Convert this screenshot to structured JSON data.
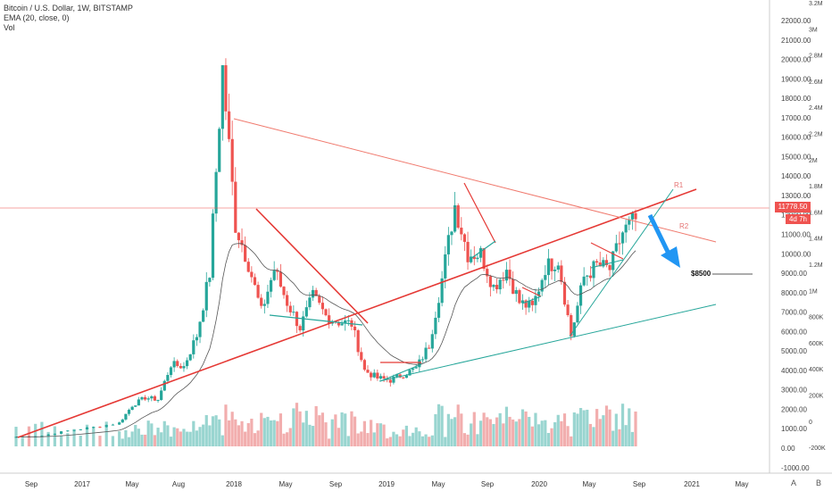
{
  "legend": {
    "symbol": "Bitcoin / U.S. Dollar, 1W, BITSTAMP",
    "ema": "EMA (20, close, 0)",
    "volume": "Vol"
  },
  "price_tag": "11778.50",
  "countdown": "4d 7h",
  "annotations": {
    "r1": "R1",
    "r2": "R2",
    "target": "$8500"
  },
  "buttons": {
    "auto": "A",
    "log": "B"
  },
  "colors": {
    "up": "#26a69a",
    "down": "#ef5350",
    "trend_red": "#e53935",
    "trend_teal": "#26a69a",
    "resistance": "#f07a6e",
    "ema": "#555555",
    "arrow": "#2196f3",
    "vol_up": "#80cbc4",
    "vol_down": "#ef9a9a"
  },
  "chart_data": {
    "type": "candlestick",
    "ylim": [
      0,
      22000
    ],
    "price_ticks": [
      "22000.00",
      "21000.00",
      "20000.00",
      "19000.00",
      "18000.00",
      "17000.00",
      "16000.00",
      "15000.00",
      "14000.00",
      "13000.00",
      "12000.00",
      "11000.00",
      "10000.00",
      "9000.00",
      "8000.00",
      "7000.00",
      "6000.00",
      "5000.00",
      "4000.00",
      "3000.00",
      "2000.00",
      "1000.00",
      "0.00",
      "-1000.00"
    ],
    "volume_ticks": [
      "3.2M",
      "3M",
      "2.8M",
      "2.6M",
      "2.4M",
      "2.2M",
      "2M",
      "1.8M",
      "1.6M",
      "1.4M",
      "1.2M",
      "1M",
      "800K",
      "600K",
      "400K",
      "200K",
      "0",
      "-200K"
    ],
    "x_ticks": [
      "Sep",
      "2017",
      "May",
      "Aug",
      "2018",
      "May",
      "Sep",
      "2019",
      "May",
      "Sep",
      "2020",
      "May",
      "Sep",
      "2021",
      "May"
    ],
    "price_line": 11778.5,
    "target_level": 8500,
    "weekly_close_path": [
      [
        "2016-08",
        580
      ],
      [
        "2016-10",
        640
      ],
      [
        "2016-12",
        900
      ],
      [
        "2017-02",
        1080
      ],
      [
        "2017-04",
        1300
      ],
      [
        "2017-05",
        2200
      ],
      [
        "2017-06",
        2600
      ],
      [
        "2017-07",
        2500
      ],
      [
        "2017-08",
        4300
      ],
      [
        "2017-09",
        4200
      ],
      [
        "2017-10",
        5800
      ],
      [
        "2017-11",
        9000
      ],
      [
        "2017-12",
        19500
      ],
      [
        "2018-01",
        11500
      ],
      [
        "2018-02",
        9500
      ],
      [
        "2018-03",
        7000
      ],
      [
        "2018-04",
        9200
      ],
      [
        "2018-05",
        7500
      ],
      [
        "2018-06",
        6200
      ],
      [
        "2018-07",
        7800
      ],
      [
        "2018-08",
        6800
      ],
      [
        "2018-09",
        6500
      ],
      [
        "2018-10",
        6400
      ],
      [
        "2018-11",
        4000
      ],
      [
        "2018-12",
        3600
      ],
      [
        "2019-01",
        3500
      ],
      [
        "2019-02",
        3800
      ],
      [
        "2019-03",
        4100
      ],
      [
        "2019-04",
        5300
      ],
      [
        "2019-05",
        8700
      ],
      [
        "2019-06",
        12500
      ],
      [
        "2019-07",
        10000
      ],
      [
        "2019-08",
        10000
      ],
      [
        "2019-09",
        8300
      ],
      [
        "2019-10",
        9200
      ],
      [
        "2019-11",
        7500
      ],
      [
        "2019-12",
        7200
      ],
      [
        "2020-01",
        9300
      ],
      [
        "2020-02",
        9700
      ],
      [
        "2020-03",
        5800
      ],
      [
        "2020-04",
        8800
      ],
      [
        "2020-05",
        9400
      ],
      [
        "2020-06",
        9200
      ],
      [
        "2020-07",
        11100
      ],
      [
        "2020-08",
        11778
      ]
    ]
  }
}
